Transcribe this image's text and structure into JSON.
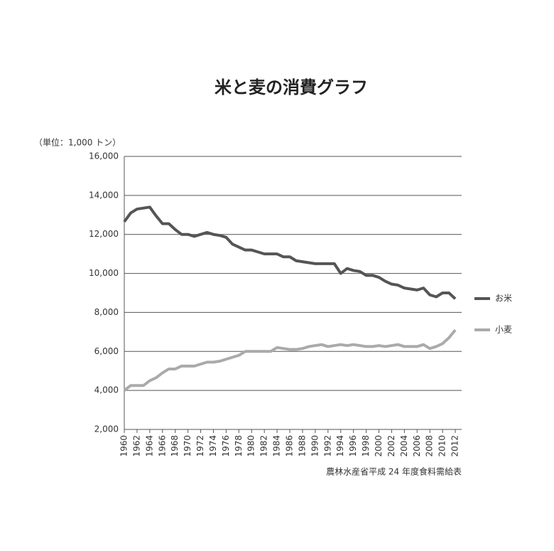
{
  "chart_data": {
    "type": "line",
    "title": "米と麦の消費グラフ",
    "y_unit": "（単位：1,000 トン）",
    "source": "農林水産省平成 24 年度食料需給表",
    "x": [
      1960,
      1961,
      1962,
      1963,
      1964,
      1965,
      1966,
      1967,
      1968,
      1969,
      1970,
      1971,
      1972,
      1973,
      1974,
      1975,
      1976,
      1977,
      1978,
      1979,
      1980,
      1981,
      1982,
      1983,
      1984,
      1985,
      1986,
      1987,
      1988,
      1989,
      1990,
      1991,
      1992,
      1993,
      1994,
      1995,
      1996,
      1997,
      1998,
      1999,
      2000,
      2001,
      2002,
      2003,
      2004,
      2005,
      2006,
      2007,
      2008,
      2009,
      2010,
      2011,
      2012
    ],
    "series": [
      {
        "name": "お米",
        "color": "#555555",
        "values": [
          12650,
          13100,
          13300,
          13350,
          13400,
          12950,
          12550,
          12550,
          12250,
          12000,
          12000,
          11900,
          12000,
          12100,
          12000,
          11950,
          11850,
          11500,
          11350,
          11200,
          11200,
          11100,
          11000,
          11000,
          11000,
          10850,
          10850,
          10650,
          10600,
          10550,
          10500,
          10500,
          10500,
          10500,
          10000,
          10250,
          10150,
          10100,
          9900,
          9900,
          9800,
          9600,
          9450,
          9400,
          9250,
          9200,
          9150,
          9250,
          8900,
          8800,
          9000,
          9000,
          8700
        ]
      },
      {
        "name": "小麦",
        "color": "#aaaaaa",
        "values": [
          4000,
          4250,
          4250,
          4250,
          4500,
          4650,
          4900,
          5100,
          5100,
          5250,
          5250,
          5250,
          5350,
          5450,
          5450,
          5500,
          5600,
          5700,
          5800,
          6000,
          6000,
          6000,
          6000,
          6000,
          6200,
          6150,
          6100,
          6100,
          6150,
          6250,
          6300,
          6350,
          6250,
          6300,
          6350,
          6300,
          6350,
          6300,
          6250,
          6250,
          6300,
          6250,
          6300,
          6350,
          6250,
          6250,
          6250,
          6350,
          6150,
          6250,
          6400,
          6700,
          7100
        ]
      }
    ],
    "xlim": [
      1960,
      2013
    ],
    "xticks": [
      1960,
      1962,
      1964,
      1966,
      1968,
      1970,
      1972,
      1974,
      1976,
      1978,
      1980,
      1982,
      1984,
      1986,
      1988,
      1990,
      1992,
      1994,
      1996,
      1998,
      2000,
      2002,
      2004,
      2006,
      2008,
      2010,
      2012
    ],
    "ylim": [
      2000,
      16000
    ],
    "yticks": [
      {
        "value": 2000,
        "label": "2,000"
      },
      {
        "value": 4000,
        "label": "4,000"
      },
      {
        "value": 6000,
        "label": "6,000"
      },
      {
        "value": 8000,
        "label": "8,000"
      },
      {
        "value": 10000,
        "label": "10,000"
      },
      {
        "value": 12000,
        "label": "12,000"
      },
      {
        "value": 14000,
        "label": "14,000"
      },
      {
        "value": 16000,
        "label": "16,000"
      }
    ],
    "grid": true,
    "legend": "right"
  }
}
